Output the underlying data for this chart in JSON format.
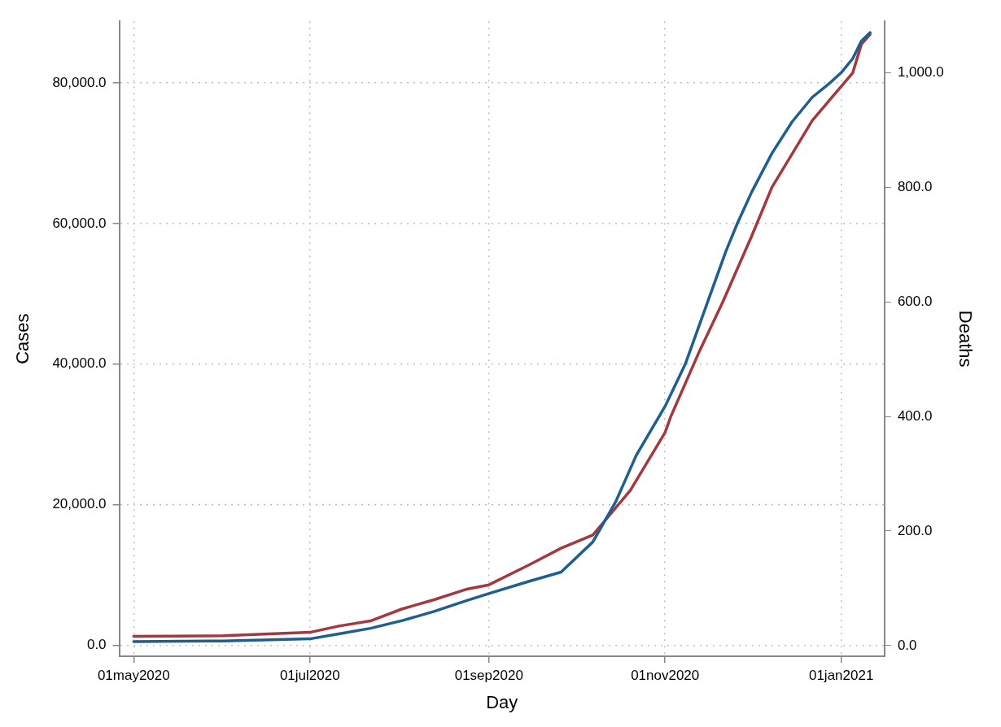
{
  "chart_data": {
    "type": "line",
    "xlabel": "Day",
    "ylabel": "Cases",
    "y2label": "Deaths",
    "xlim": [
      "2020-04-26",
      "2021-01-16"
    ],
    "xticks": [
      {
        "value": "2020-05-01",
        "label": "01may2020"
      },
      {
        "value": "2020-07-01",
        "label": "01jul2020"
      },
      {
        "value": "2020-09-01",
        "label": "01sep2020"
      },
      {
        "value": "2020-11-01",
        "label": "01nov2020"
      },
      {
        "value": "2021-01-01",
        "label": "01jan2021"
      }
    ],
    "ylim": [
      -1600,
      88800
    ],
    "yticks": [
      {
        "value": 0,
        "label": "0.0"
      },
      {
        "value": 20000,
        "label": "20,000.0"
      },
      {
        "value": 40000,
        "label": "40,000.0"
      },
      {
        "value": 60000,
        "label": "60,000.0"
      },
      {
        "value": 80000,
        "label": "80,000.0"
      }
    ],
    "y2lim": [
      -19,
      1090
    ],
    "y2ticks": [
      {
        "value": 0,
        "label": "0.0"
      },
      {
        "value": 200,
        "label": "200.0"
      },
      {
        "value": 400,
        "label": "400.0"
      },
      {
        "value": 600,
        "label": "600.0"
      },
      {
        "value": 800,
        "label": "800.0"
      },
      {
        "value": 1000,
        "label": "1,000.0"
      }
    ],
    "grid": true,
    "legend": false,
    "marker": "none",
    "line_style": "solid",
    "series": [
      {
        "color": "#1f5f8f",
        "x": [
          "2020-05-01",
          "2020-06-01",
          "2020-07-01",
          "2020-07-11",
          "2020-07-22",
          "2020-08-02",
          "2020-08-13",
          "2020-08-24",
          "2020-09-01",
          "2020-09-15",
          "2020-09-26",
          "2020-10-07",
          "2020-10-15",
          "2020-10-22",
          "2020-11-01",
          "2020-11-08",
          "2020-11-15",
          "2020-11-22",
          "2020-11-26",
          "2020-12-01",
          "2020-12-08",
          "2020-12-15",
          "2020-12-22",
          "2020-12-28",
          "2021-01-01",
          "2021-01-05",
          "2021-01-08",
          "2021-01-11"
        ],
        "values": [
          500,
          600,
          900,
          1600,
          2400,
          3500,
          4800,
          6300,
          7350,
          9100,
          10400,
          14700,
          20500,
          27000,
          34000,
          40000,
          48000,
          56000,
          60000,
          64500,
          70000,
          74500,
          78000,
          80000,
          81500,
          83500,
          86000,
          87200
        ]
      },
      {
        "color": "#a3393f",
        "axis": "y2",
        "x": [
          "2020-05-01",
          "2020-06-01",
          "2020-07-01",
          "2020-07-11",
          "2020-07-22",
          "2020-08-02",
          "2020-08-13",
          "2020-08-24",
          "2020-09-01",
          "2020-09-15",
          "2020-09-26",
          "2020-10-07",
          "2020-10-20",
          "2020-11-01",
          "2020-11-03",
          "2020-11-13",
          "2020-11-21",
          "2020-12-01",
          "2020-12-08",
          "2020-12-22",
          "2021-01-05",
          "2021-01-08",
          "2021-01-11"
        ],
        "values": [
          16,
          17,
          23,
          34,
          43,
          64,
          80,
          98,
          106,
          141,
          170,
          193,
          271,
          372,
          400,
          515,
          600,
          715,
          800,
          917,
          1000,
          1050,
          1067
        ]
      }
    ]
  }
}
